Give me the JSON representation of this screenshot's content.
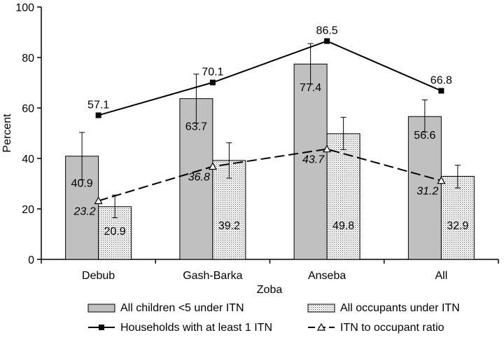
{
  "chart_data": {
    "type": "bar",
    "categories": [
      "Debub",
      "Gash-Barka",
      "Anseba",
      "All"
    ],
    "xlabel": "Zoba",
    "ylabel": "Percent",
    "ylim": [
      0,
      100
    ],
    "yticks": [
      0,
      20,
      40,
      60,
      80,
      100
    ],
    "grid": false,
    "legend_position": "bottom",
    "series": [
      {
        "name": "All children <5 under ITN",
        "kind": "bar",
        "values": [
          40.9,
          63.7,
          77.4,
          56.6
        ],
        "labels": [
          "40.9",
          "63.7",
          "77.4",
          "56.6"
        ],
        "error_low": [
          31.5,
          54.0,
          69.5,
          50.5
        ],
        "error_high": [
          50.3,
          73.4,
          85.5,
          63.2
        ],
        "color": "#c0c0c0"
      },
      {
        "name": "All occupants under ITN",
        "kind": "bar",
        "values": [
          20.9,
          39.2,
          49.8,
          32.9
        ],
        "labels": [
          "20.9",
          "39.2",
          "49.8",
          "32.9"
        ],
        "error_low": [
          16.5,
          32.2,
          43.5,
          28.3
        ],
        "error_high": [
          25.5,
          46.2,
          56.3,
          37.3
        ],
        "color": "#ffffff"
      },
      {
        "name": "Households with at least 1 ITN",
        "kind": "line",
        "values": [
          57.1,
          70.1,
          86.5,
          66.8
        ],
        "labels": [
          "57.1",
          "70.1",
          "86.5",
          "66.8"
        ],
        "line_style": "solid",
        "marker": "square",
        "color": "#000000"
      },
      {
        "name": "ITN to occupant ratio",
        "kind": "line",
        "values": [
          23.2,
          36.8,
          43.7,
          31.2
        ],
        "labels": [
          "23.2",
          "36.8",
          "43.7",
          "31.2"
        ],
        "line_style": "dashed",
        "marker": "triangle-open",
        "color": "#000000"
      }
    ]
  }
}
